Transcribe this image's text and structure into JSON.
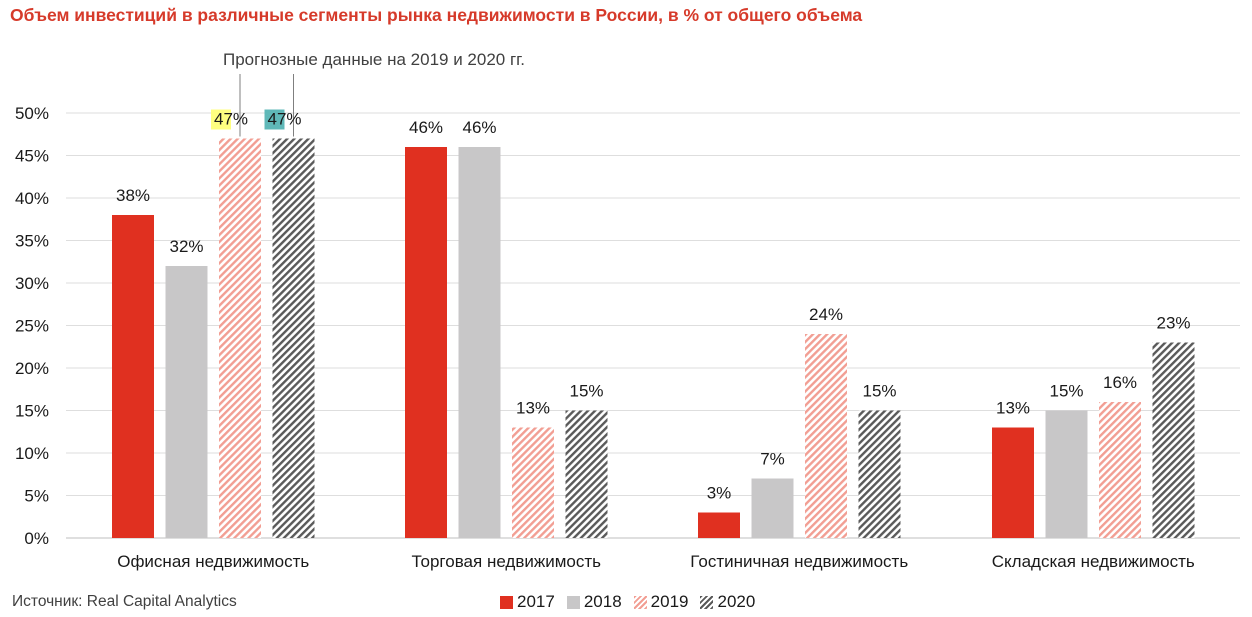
{
  "title": "Объем инвестиций в различные сегменты рынка недвижимости в России, в % от общего объема",
  "forecast_note": "Прогнозные данные на 2019 и 2020 гг.",
  "source": "Источник: Real Capital Analytics",
  "colors": {
    "title": "#d63a2a",
    "s2017": "#e03020",
    "s2018": "#c8c7c8",
    "s2019": "#f29e93",
    "s2020": "#5a5a5a",
    "highlight_yellow": "#ffff80",
    "highlight_teal": "#5fb8b8"
  },
  "chart_data": {
    "type": "bar",
    "title": "Объем инвестиций в различные сегменты рынка недвижимости в России, в % от общего объема",
    "categories": [
      "Офисная недвижимость",
      "Торговая недвижимость",
      "Гостиничная недвижимость",
      "Складская недвижимость"
    ],
    "series": [
      {
        "name": "2017",
        "values": [
          38,
          46,
          3,
          13
        ],
        "style": "solid-red"
      },
      {
        "name": "2018",
        "values": [
          32,
          46,
          7,
          15
        ],
        "style": "solid-gray"
      },
      {
        "name": "2019",
        "values": [
          47,
          13,
          24,
          16
        ],
        "style": "hatched-red"
      },
      {
        "name": "2020",
        "values": [
          47,
          15,
          15,
          23
        ],
        "style": "hatched-gray"
      }
    ],
    "value_labels": [
      [
        "38%",
        "46%",
        "3%",
        "13%"
      ],
      [
        "32%",
        "46%",
        "7%",
        "15%"
      ],
      [
        "47%",
        "13%",
        "24%",
        "16%"
      ],
      [
        "47%",
        "15%",
        "15%",
        "23%"
      ]
    ],
    "yticks": [
      "0%",
      "5%",
      "10%",
      "15%",
      "20%",
      "25%",
      "30%",
      "35%",
      "40%",
      "45%",
      "50%"
    ],
    "ylim": [
      0,
      50
    ],
    "grid": true,
    "legend_position": "bottom",
    "xlabel": "",
    "ylabel": ""
  }
}
